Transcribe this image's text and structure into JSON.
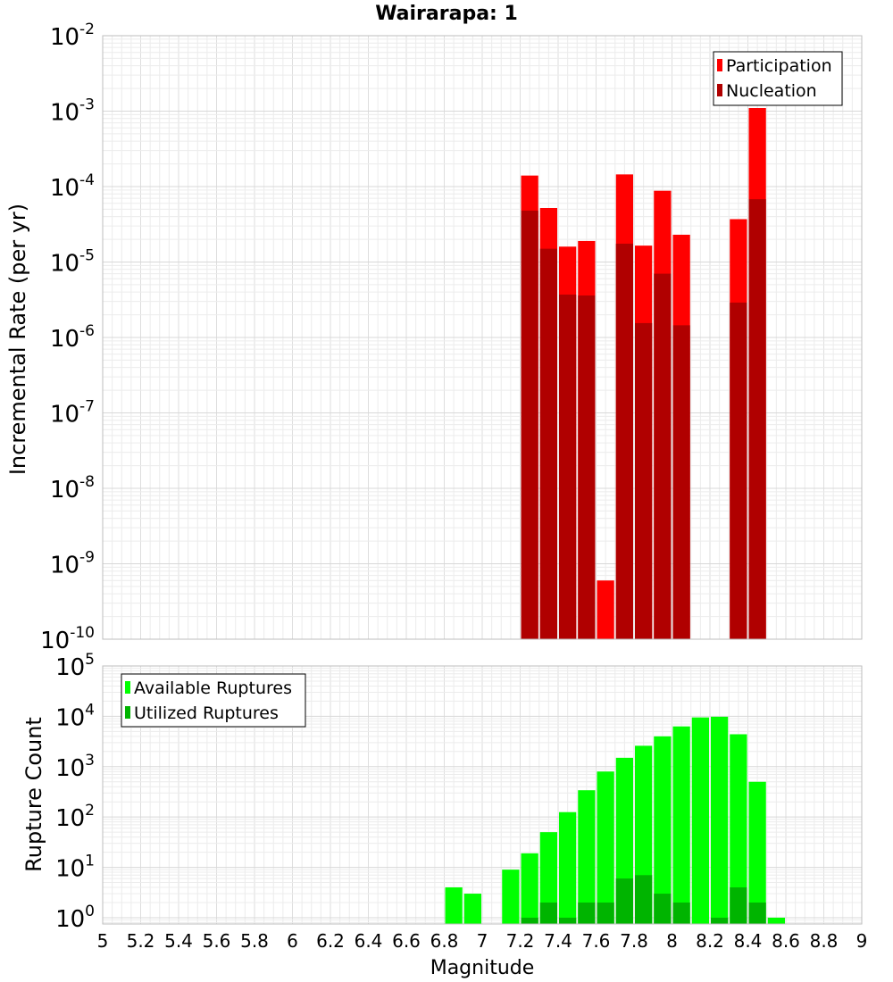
{
  "chart_data": {
    "title": "Wairarapa: 1",
    "xlabel": "Magnitude",
    "xlim": [
      5,
      9
    ],
    "xticks": [
      "5",
      "5.2",
      "5.4",
      "5.6",
      "5.8",
      "6",
      "6.2",
      "6.4",
      "6.6",
      "6.8",
      "7",
      "7.2",
      "7.4",
      "7.6",
      "7.8",
      "8",
      "8.2",
      "8.4",
      "8.6",
      "8.8",
      "9"
    ],
    "bin_width": 0.1,
    "panels": [
      {
        "type": "bar",
        "yscale": "log",
        "ylabel": "Incremental Rate (per yr)",
        "ylim": [
          1e-10,
          0.01
        ],
        "ytick_exponents": [
          -10,
          -9,
          -8,
          -7,
          -6,
          -5,
          -4,
          -3,
          -2
        ],
        "legend_position": "top-right",
        "series": [
          {
            "name": "Participation",
            "color": "#ff0000",
            "x": [
              7.25,
              7.35,
              7.45,
              7.55,
              7.65,
              7.75,
              7.85,
              7.95,
              8.05,
              8.35,
              8.45
            ],
            "values": [
              0.00014,
              5.2e-05,
              1.6e-05,
              1.9e-05,
              6e-10,
              0.000145,
              1.65e-05,
              8.8e-05,
              2.3e-05,
              3.7e-05,
              0.0011
            ]
          },
          {
            "name": "Nucleation",
            "color": "#b00000",
            "x": [
              7.25,
              7.35,
              7.45,
              7.55,
              7.75,
              7.85,
              7.95,
              8.05,
              8.35,
              8.45
            ],
            "values": [
              4.8e-05,
              1.5e-05,
              3.7e-06,
              3.6e-06,
              1.75e-05,
              1.55e-06,
              7e-06,
              1.45e-06,
              2.9e-06,
              6.8e-05
            ]
          }
        ]
      },
      {
        "type": "bar",
        "yscale": "log",
        "ylabel": "Rupture Count",
        "ylim": [
          0.75,
          100000.0
        ],
        "ytick_exponents": [
          0,
          1,
          2,
          3,
          4,
          5
        ],
        "legend_position": "top-left",
        "series": [
          {
            "name": "Available Ruptures",
            "color": "#00ff00",
            "x": [
              6.85,
              6.95,
              7.15,
              7.25,
              7.35,
              7.45,
              7.55,
              7.65,
              7.75,
              7.85,
              7.95,
              8.05,
              8.15,
              8.25,
              8.35,
              8.45,
              8.55
            ],
            "values": [
              4,
              3,
              9,
              19,
              50,
              125,
              340,
              800,
              1500,
              2600,
              4000,
              6300,
              9500,
              9800,
              4400,
              500,
              1
            ]
          },
          {
            "name": "Utilized Ruptures",
            "color": "#00b400",
            "x": [
              7.25,
              7.35,
              7.45,
              7.55,
              7.65,
              7.75,
              7.85,
              7.95,
              8.05,
              8.25,
              8.35,
              8.45
            ],
            "values": [
              1,
              2,
              1,
              2,
              2,
              6,
              7,
              3,
              2,
              1,
              4,
              2
            ]
          }
        ]
      }
    ]
  }
}
